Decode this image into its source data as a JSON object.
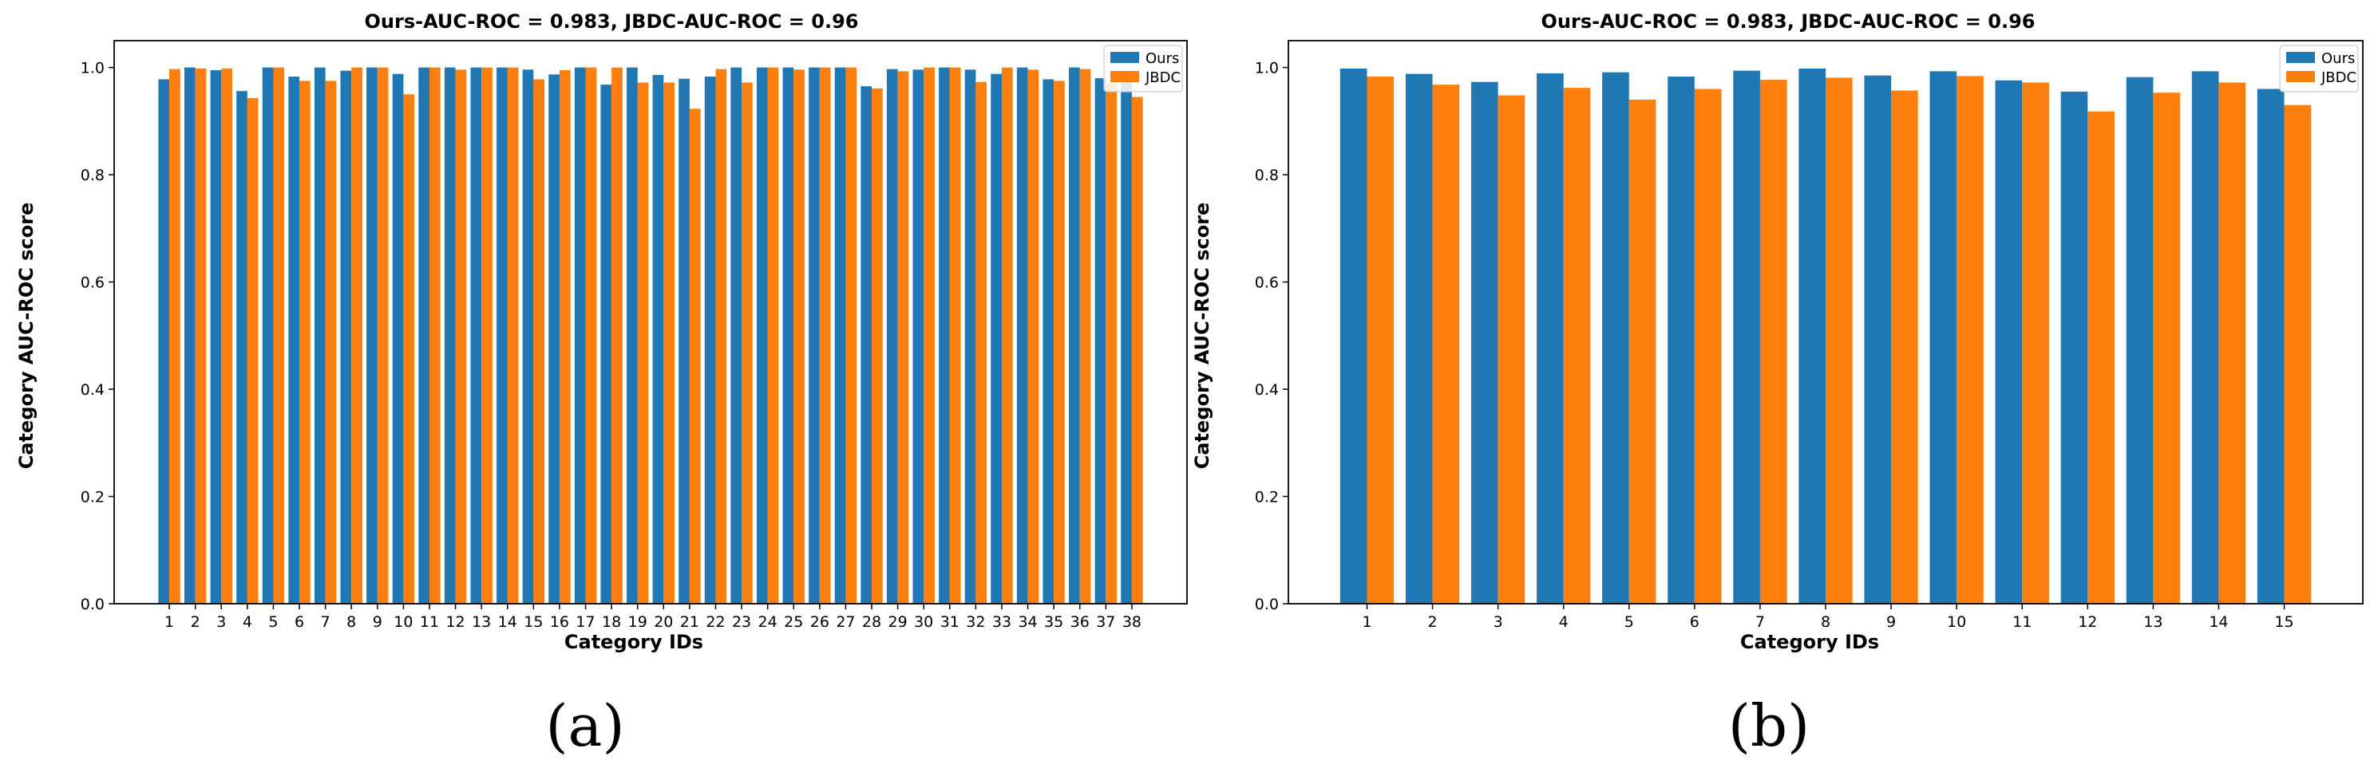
{
  "chart_data": [
    {
      "type": "bar",
      "title": "Ours-AUC-ROC = 0.983, JBDC-AUC-ROC = 0.96",
      "xlabel": "Category IDs",
      "ylabel": "Category AUC-ROC score",
      "ylim": [
        0,
        1.05
      ],
      "yticks": [
        "0.0",
        "0.2",
        "0.4",
        "0.6",
        "0.8",
        "1.0"
      ],
      "grid": false,
      "legend_position": "top-right",
      "panel_label": "(a)",
      "categories": [
        "1",
        "2",
        "3",
        "4",
        "5",
        "6",
        "7",
        "8",
        "9",
        "10",
        "11",
        "12",
        "13",
        "14",
        "15",
        "16",
        "17",
        "18",
        "19",
        "20",
        "21",
        "22",
        "23",
        "24",
        "25",
        "26",
        "27",
        "28",
        "29",
        "30",
        "31",
        "32",
        "33",
        "34",
        "35",
        "36",
        "37",
        "38"
      ],
      "series": [
        {
          "name": "Ours",
          "color": "#1f77b4",
          "values": [
            0.978,
            1.0,
            0.995,
            0.956,
            1.0,
            0.983,
            1.0,
            0.994,
            1.0,
            0.988,
            1.0,
            1.0,
            1.0,
            1.0,
            0.996,
            0.987,
            1.0,
            0.968,
            1.0,
            0.986,
            0.979,
            0.983,
            1.0,
            1.0,
            1.0,
            1.0,
            1.0,
            0.965,
            0.997,
            0.996,
            1.0,
            0.996,
            0.988,
            1.0,
            0.978,
            1.0,
            0.98,
            0.99
          ]
        },
        {
          "name": "JBDC",
          "color": "#ff7f0e",
          "values": [
            0.997,
            0.998,
            0.998,
            0.943,
            1.0,
            0.975,
            0.975,
            1.0,
            1.0,
            0.95,
            1.0,
            0.996,
            1.0,
            1.0,
            0.978,
            0.995,
            1.0,
            1.0,
            0.972,
            0.972,
            0.923,
            0.997,
            0.972,
            1.0,
            0.996,
            1.0,
            1.0,
            0.961,
            0.993,
            1.0,
            1.0,
            0.973,
            1.0,
            0.996,
            0.975,
            0.997,
            0.97,
            0.945
          ]
        }
      ]
    },
    {
      "type": "bar",
      "title": "Ours-AUC-ROC = 0.983, JBDC-AUC-ROC = 0.96",
      "xlabel": "Category IDs",
      "ylabel": "Category AUC-ROC score",
      "ylim": [
        0,
        1.05
      ],
      "yticks": [
        "0.0",
        "0.2",
        "0.4",
        "0.6",
        "0.8",
        "1.0"
      ],
      "grid": false,
      "legend_position": "top-right",
      "panel_label": "(b)",
      "categories": [
        "1",
        "2",
        "3",
        "4",
        "5",
        "6",
        "7",
        "8",
        "9",
        "10",
        "11",
        "12",
        "13",
        "14",
        "15"
      ],
      "series": [
        {
          "name": "Ours",
          "color": "#1f77b4",
          "values": [
            0.998,
            0.988,
            0.973,
            0.989,
            0.991,
            0.983,
            0.994,
            0.998,
            0.985,
            0.993,
            0.976,
            0.955,
            0.982,
            0.993,
            0.96
          ]
        },
        {
          "name": "JBDC",
          "color": "#ff7f0e",
          "values": [
            0.983,
            0.968,
            0.948,
            0.962,
            0.94,
            0.96,
            0.977,
            0.981,
            0.957,
            0.984,
            0.972,
            0.918,
            0.953,
            0.972,
            0.93
          ]
        }
      ]
    }
  ]
}
